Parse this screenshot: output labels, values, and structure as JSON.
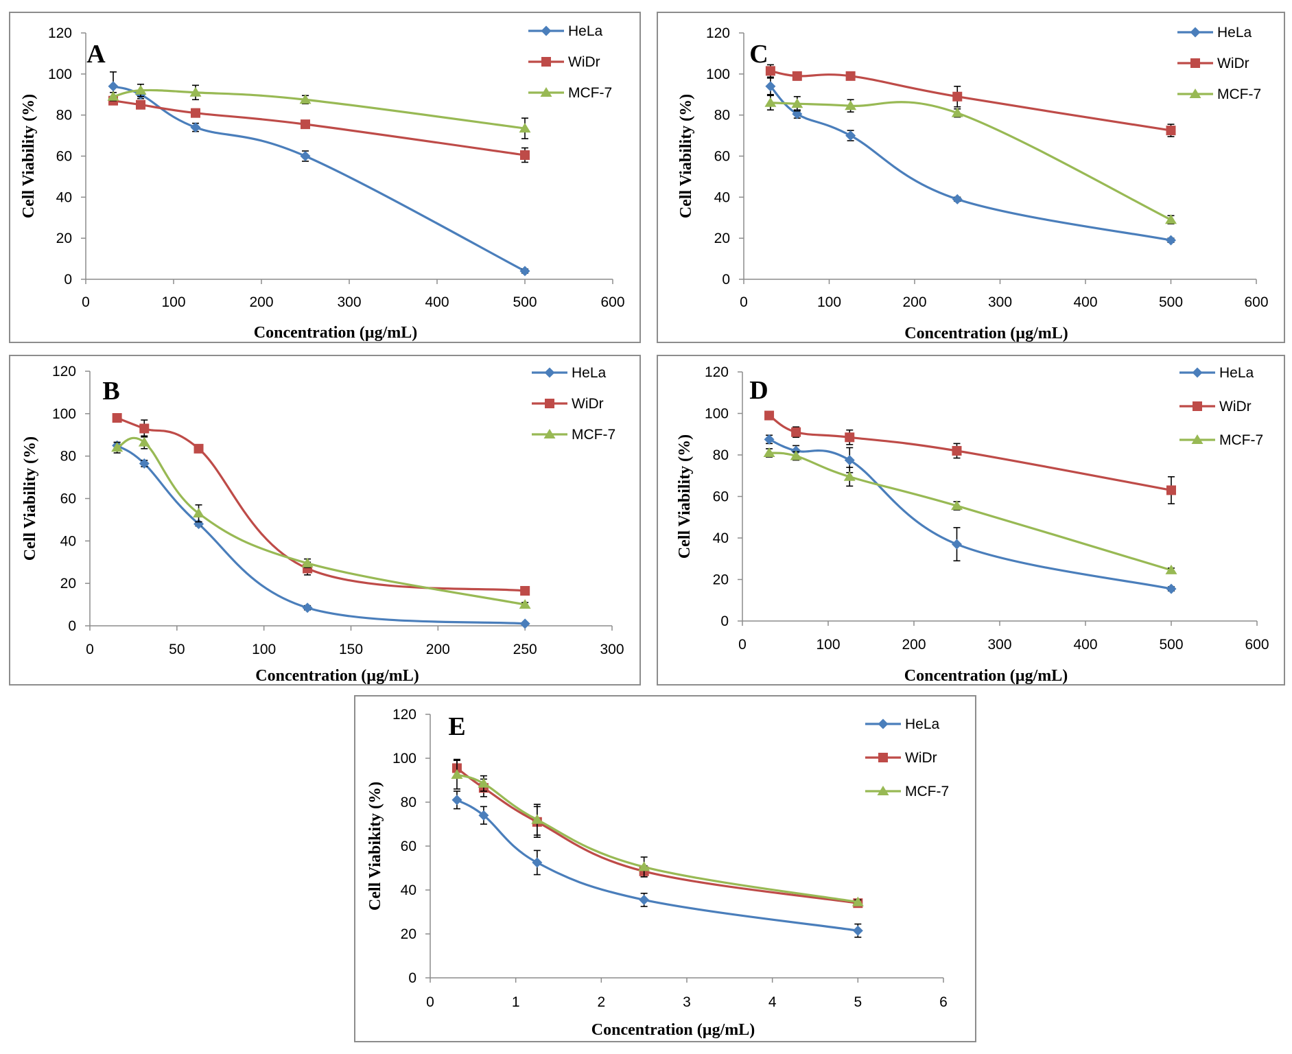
{
  "chart_data": [
    {
      "id": "A",
      "type": "line",
      "panel_label": "A",
      "xlabel": "Concentration (µg/mL)",
      "ylabel": "Cell Viability (%)",
      "xlim": [
        0,
        600
      ],
      "ylim": [
        0,
        120
      ],
      "xticks": [
        "0",
        "100",
        "200",
        "300",
        "400",
        "500",
        "600"
      ],
      "yticks": [
        "0",
        "20",
        "40",
        "60",
        "80",
        "100",
        "120"
      ],
      "series": [
        {
          "name": "HeLa",
          "color": "#4a7ebb",
          "marker": "diamond",
          "x": [
            31.25,
            62.5,
            125,
            250,
            500
          ],
          "values": [
            94,
            90,
            74,
            60,
            4
          ],
          "errors": [
            7,
            2,
            2,
            2.5,
            1
          ]
        },
        {
          "name": "WiDr",
          "color": "#be4b48",
          "marker": "square",
          "x": [
            31.25,
            62.5,
            125,
            250,
            500
          ],
          "values": [
            87,
            85,
            81,
            75.5,
            60.5
          ],
          "errors": [
            2,
            1.5,
            2,
            1.5,
            3.5
          ]
        },
        {
          "name": "MCF-7",
          "color": "#98b954",
          "marker": "triangle",
          "x": [
            31.25,
            62.5,
            125,
            250,
            500
          ],
          "values": [
            89,
            92,
            91,
            87.5,
            73.5
          ],
          "errors": [
            2,
            3,
            3.5,
            2,
            5
          ]
        }
      ]
    },
    {
      "id": "C",
      "type": "line",
      "panel_label": "C",
      "xlabel": "Concentration (µg/mL)",
      "ylabel": "Cell Viability (%)",
      "xlim": [
        0,
        600
      ],
      "ylim": [
        0,
        120
      ],
      "xticks": [
        "0",
        "100",
        "200",
        "300",
        "400",
        "500",
        "600"
      ],
      "yticks": [
        "0",
        "20",
        "40",
        "60",
        "80",
        "100",
        "120"
      ],
      "series": [
        {
          "name": "HeLa",
          "color": "#4a7ebb",
          "marker": "diamond",
          "x": [
            31.25,
            62.5,
            125,
            250,
            500
          ],
          "values": [
            94,
            80.5,
            70,
            39,
            19
          ],
          "errors": [
            4,
            2,
            2.5,
            1,
            1
          ]
        },
        {
          "name": "WiDr",
          "color": "#be4b48",
          "marker": "square",
          "x": [
            31.25,
            62.5,
            125,
            250,
            500
          ],
          "values": [
            101.5,
            99,
            99,
            89,
            72.5
          ],
          "errors": [
            3,
            2,
            1,
            5,
            3
          ]
        },
        {
          "name": "MCF-7",
          "color": "#98b954",
          "marker": "triangle",
          "x": [
            31.25,
            62.5,
            125,
            250,
            500
          ],
          "values": [
            86,
            85.5,
            84.5,
            81,
            29
          ],
          "errors": [
            3.5,
            3.5,
            3,
            2,
            2
          ]
        }
      ]
    },
    {
      "id": "B",
      "type": "line",
      "panel_label": "B",
      "xlabel": "Concentration (µg/mL)",
      "ylabel": "Cell Viability (%)",
      "xlim": [
        0,
        300
      ],
      "ylim": [
        0,
        120
      ],
      "xticks": [
        "0",
        "50",
        "100",
        "150",
        "200",
        "250",
        "300"
      ],
      "yticks": [
        "0",
        "20",
        "40",
        "60",
        "80",
        "100",
        "120"
      ],
      "series": [
        {
          "name": "HeLa",
          "color": "#4a7ebb",
          "marker": "diamond",
          "x": [
            15.625,
            31.25,
            62.5,
            125,
            250
          ],
          "values": [
            85,
            76.5,
            48,
            8.5,
            1
          ],
          "errors": [
            1.5,
            1.5,
            1,
            1,
            0.5
          ]
        },
        {
          "name": "WiDr",
          "color": "#be4b48",
          "marker": "square",
          "x": [
            15.625,
            31.25,
            62.5,
            125,
            250
          ],
          "values": [
            98,
            93,
            83.5,
            27,
            16.5
          ],
          "errors": [
            1,
            4,
            1,
            3,
            1
          ]
        },
        {
          "name": "MCF-7",
          "color": "#98b954",
          "marker": "triangle",
          "x": [
            15.625,
            31.25,
            62.5,
            125,
            250
          ],
          "values": [
            84,
            86.5,
            53,
            29.5,
            10
          ],
          "errors": [
            2.5,
            3,
            4,
            2,
            1
          ]
        }
      ]
    },
    {
      "id": "D",
      "type": "line",
      "panel_label": "D",
      "xlabel": "Concentration (µg/mL)",
      "ylabel": "Cell Viability (%)",
      "xlim": [
        0,
        600
      ],
      "ylim": [
        0,
        120
      ],
      "xticks": [
        "0",
        "100",
        "200",
        "300",
        "400",
        "500",
        "600"
      ],
      "yticks": [
        "0",
        "20",
        "40",
        "60",
        "80",
        "100",
        "120"
      ],
      "series": [
        {
          "name": "HeLa",
          "color": "#4a7ebb",
          "marker": "diamond",
          "x": [
            31.25,
            62.5,
            125,
            250,
            500
          ],
          "values": [
            87.5,
            82,
            77.5,
            37,
            15.5
          ],
          "errors": [
            2,
            2.5,
            6,
            8,
            1
          ]
        },
        {
          "name": "WiDr",
          "color": "#be4b48",
          "marker": "square",
          "x": [
            31.25,
            62.5,
            125,
            250,
            500
          ],
          "values": [
            99,
            91,
            88.5,
            82,
            63
          ],
          "errors": [
            1.5,
            2.5,
            3.5,
            3.5,
            6.5
          ]
        },
        {
          "name": "MCF-7",
          "color": "#98b954",
          "marker": "triangle",
          "x": [
            31.25,
            62.5,
            125,
            250,
            500
          ],
          "values": [
            81,
            79.5,
            69.5,
            55.5,
            24.5
          ],
          "errors": [
            2,
            2,
            4.5,
            2,
            1
          ]
        }
      ]
    },
    {
      "id": "E",
      "type": "line",
      "panel_label": "E",
      "xlabel": "Concentration (µg/mL)",
      "ylabel": "Cell Viabikity (%)",
      "xlim": [
        0,
        6
      ],
      "ylim": [
        0,
        120
      ],
      "xticks": [
        "0",
        "1",
        "2",
        "3",
        "4",
        "5",
        "6"
      ],
      "yticks": [
        "0",
        "20",
        "40",
        "60",
        "80",
        "100",
        "120"
      ],
      "series": [
        {
          "name": "HeLa",
          "color": "#4a7ebb",
          "marker": "diamond",
          "x": [
            0.3125,
            0.625,
            1.25,
            2.5,
            5
          ],
          "values": [
            81,
            74,
            52.5,
            35.5,
            21.5
          ],
          "errors": [
            4,
            4,
            5.5,
            3,
            3
          ]
        },
        {
          "name": "WiDr",
          "color": "#be4b48",
          "marker": "square",
          "x": [
            0.3125,
            0.625,
            1.25,
            2.5,
            5
          ],
          "values": [
            95.5,
            86.5,
            71,
            48.5,
            34
          ],
          "errors": [
            4,
            4,
            7,
            2.5,
            1.5
          ]
        },
        {
          "name": "MCF-7",
          "color": "#98b954",
          "marker": "triangle",
          "x": [
            0.3125,
            0.625,
            1.25,
            2.5,
            5
          ],
          "values": [
            92.5,
            88.5,
            72,
            50.5,
            34.5
          ],
          "errors": [
            6.5,
            3.5,
            7,
            4.5,
            1
          ]
        }
      ]
    }
  ]
}
